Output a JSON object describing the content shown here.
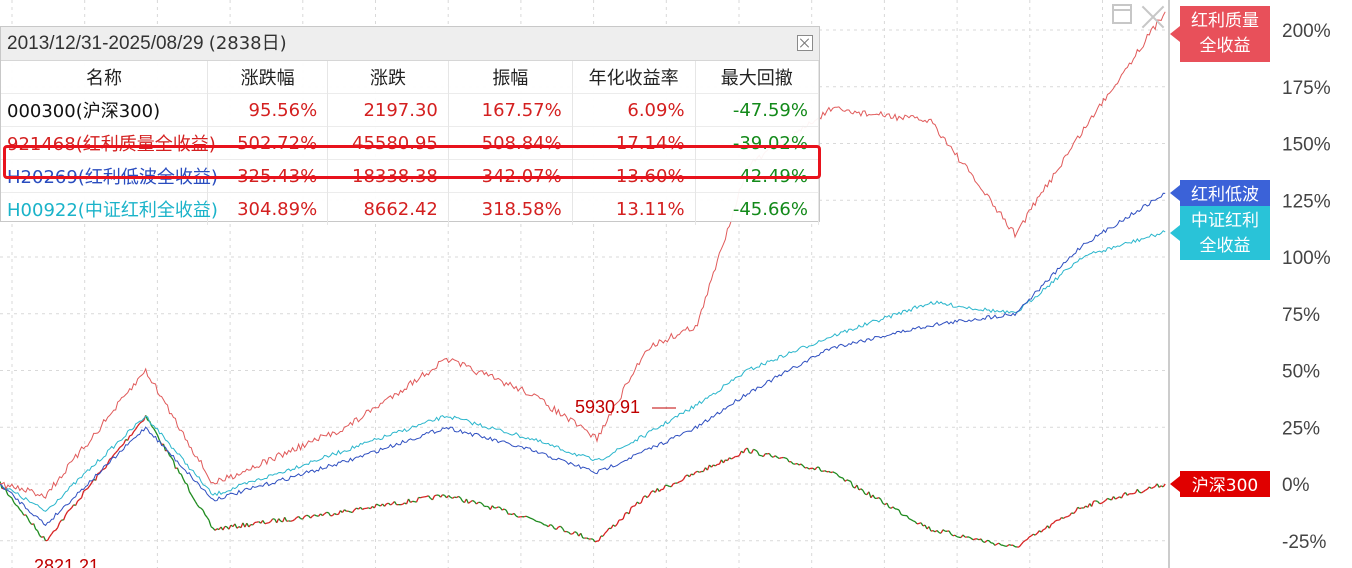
{
  "legend": {
    "date_range": "2013/12/31-2025/08/29",
    "days": "(2838日)",
    "headers": [
      "名称",
      "涨跌幅",
      "涨跌",
      "振幅",
      "年化收益率",
      "最大回撤"
    ],
    "rows": [
      {
        "name": "000300(沪深300)",
        "change_pct": "95.56%",
        "change": "2197.30",
        "amplitude": "167.57%",
        "annual": "6.09%",
        "max_dd": "-47.59%",
        "color": "#111111"
      },
      {
        "name": "921468(红利质量全收益)",
        "change_pct": "502.72%",
        "change": "45580.95",
        "amplitude": "508.84%",
        "annual": "17.14%",
        "max_dd": "-39.02%",
        "color": "#d42020"
      },
      {
        "name": "H20269(红利低波全收益)",
        "change_pct": "325.43%",
        "change": "18338.38",
        "amplitude": "342.07%",
        "annual": "13.60%",
        "max_dd": "-42.49%",
        "color": "#2a4dbf"
      },
      {
        "name": "H00922(中证红利全收益)",
        "change_pct": "304.89%",
        "change": "8662.42",
        "amplitude": "318.58%",
        "annual": "13.11%",
        "max_dd": "-45.66%",
        "color": "#1ab3c9"
      }
    ],
    "highlighted_row": 1
  },
  "tags": [
    {
      "label_lines": [
        "红利质量",
        "全收益"
      ],
      "color": "#e8505a",
      "value": 208
    },
    {
      "label_lines": [
        "红利低波"
      ],
      "color": "#3b62d8",
      "value": 128
    },
    {
      "label_lines": [
        "中证红利",
        "全收益"
      ],
      "color": "#29c3d8",
      "value": 111
    },
    {
      "label_lines": [
        "沪深300"
      ],
      "color": "#e00000",
      "value": 0
    }
  ],
  "annotations": {
    "high": "5930.91",
    "low": "2821.21"
  },
  "colors": {
    "hs300_up": "#d62020",
    "hs300_down": "#1e8a1e",
    "quality": "#e05a5a",
    "lowvol": "#2f4fc0",
    "csi_div": "#2bb6cc",
    "grid": "#d9d9d9"
  },
  "chart_data": {
    "type": "line",
    "x_range": [
      "2013/12/31",
      "2025/08/29"
    ],
    "y_unit": "%",
    "ylim": [
      -30,
      215
    ],
    "y_ticks": [
      "200%",
      "175%",
      "150%",
      "125%",
      "100%",
      "75%",
      "50%",
      "25%",
      "0%",
      "-25%"
    ],
    "grid": true,
    "legend_position": "top-left",
    "series": [
      {
        "name": "红利质量全收益",
        "color": "#e05a5a",
        "x": [
          "2014-06",
          "2015-06",
          "2016-02",
          "2017-06",
          "2018-06",
          "2019-04",
          "2019-12",
          "2020-06",
          "2020-12",
          "2021-06",
          "2022-04",
          "2023-04",
          "2024-02",
          "2024-10",
          "2025-08"
        ],
        "values": [
          -5,
          50,
          0,
          25,
          55,
          40,
          20,
          60,
          70,
          140,
          165,
          160,
          110,
          155,
          208
        ]
      },
      {
        "name": "红利低波全收益",
        "color": "#2f4fc0",
        "x": [
          "2014-06",
          "2015-06",
          "2016-02",
          "2017-06",
          "2018-06",
          "2019-04",
          "2019-12",
          "2020-06",
          "2020-12",
          "2021-06",
          "2022-04",
          "2023-04",
          "2024-02",
          "2024-10",
          "2025-08"
        ],
        "values": [
          -18,
          25,
          -7,
          10,
          25,
          15,
          5,
          15,
          25,
          40,
          60,
          70,
          75,
          105,
          128
        ]
      },
      {
        "name": "中证红利全收益",
        "color": "#2bb6cc",
        "x": [
          "2014-06",
          "2015-06",
          "2016-02",
          "2017-06",
          "2018-06",
          "2019-04",
          "2019-12",
          "2020-06",
          "2020-12",
          "2021-06",
          "2022-04",
          "2023-04",
          "2024-02",
          "2024-10",
          "2025-08"
        ],
        "values": [
          -12,
          30,
          -5,
          15,
          30,
          20,
          10,
          22,
          35,
          50,
          65,
          80,
          75,
          100,
          111
        ]
      },
      {
        "name": "沪深300",
        "color": "#d62020",
        "x": [
          "2014-06",
          "2015-06",
          "2016-02",
          "2017-06",
          "2018-06",
          "2019-04",
          "2019-12",
          "2020-06",
          "2020-12",
          "2021-06",
          "2022-04",
          "2023-04",
          "2024-02",
          "2024-10",
          "2025-08"
        ],
        "values": [
          -25,
          30,
          -20,
          -12,
          -5,
          -15,
          -25,
          -5,
          5,
          15,
          5,
          -20,
          -28,
          -10,
          0
        ]
      }
    ]
  }
}
